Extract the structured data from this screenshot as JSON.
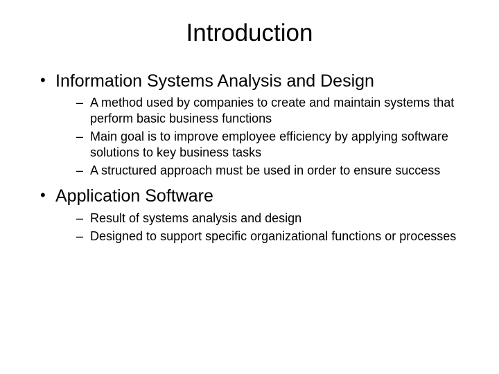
{
  "title": "Introduction",
  "bullets": [
    {
      "text": "Information Systems Analysis and Design",
      "sub": [
        "A method used by companies to create and maintain systems that perform basic business functions",
        "Main goal is to improve employee efficiency by applying software solutions to key business tasks",
        "A structured approach must be used in order to ensure success"
      ]
    },
    {
      "text": "Application Software",
      "sub": [
        "Result of systems analysis and design",
        "Designed to support specific organizational functions or processes"
      ]
    }
  ],
  "colors": {
    "background": "#ffffff",
    "text": "#000000"
  },
  "typography": {
    "title_fontsize": 35,
    "level1_fontsize": 25,
    "level2_fontsize": 18,
    "font_family": "Arial"
  }
}
